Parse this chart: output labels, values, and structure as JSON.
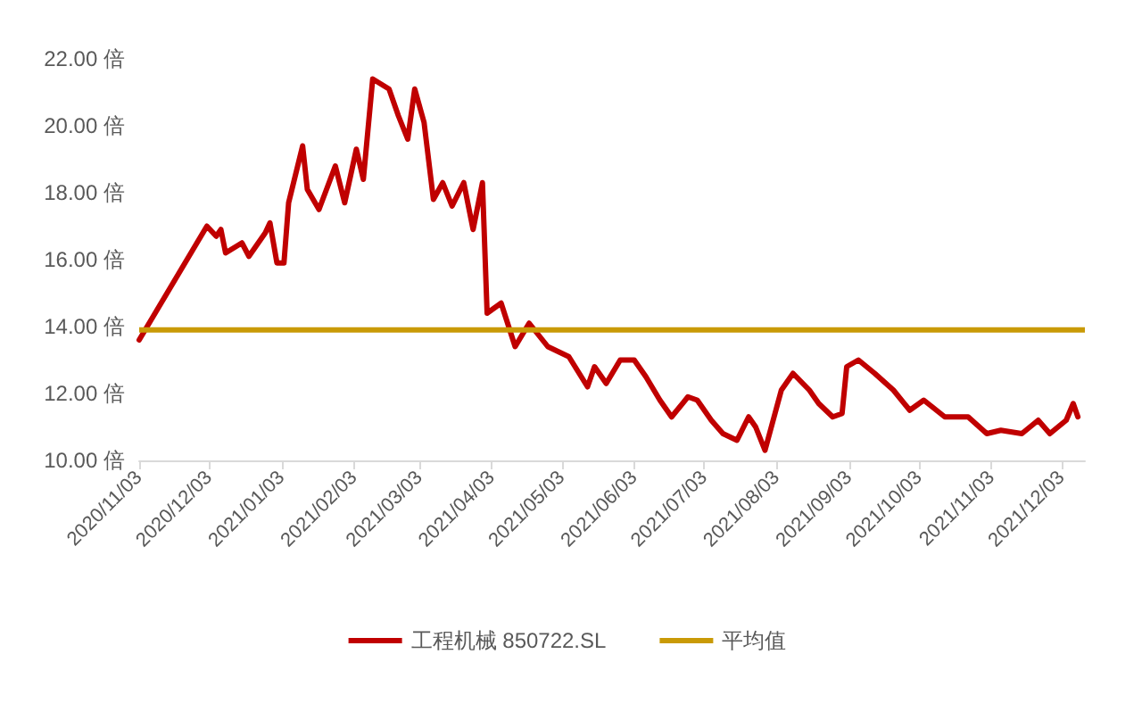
{
  "chart_data": {
    "type": "line",
    "x": [
      "2020-11-03",
      "2020-12-02",
      "2020-12-06",
      "2020-12-08",
      "2020-12-10",
      "2020-12-17",
      "2020-12-20",
      "2020-12-27",
      "2020-12-29",
      "2021-01-01",
      "2021-01-04",
      "2021-01-06",
      "2021-01-12",
      "2021-01-14",
      "2021-01-19",
      "2021-01-26",
      "2021-01-30",
      "2021-02-04",
      "2021-02-07",
      "2021-02-11",
      "2021-02-18",
      "2021-02-22",
      "2021-02-26",
      "2021-03-01",
      "2021-03-05",
      "2021-03-09",
      "2021-03-13",
      "2021-03-17",
      "2021-03-22",
      "2021-03-26",
      "2021-03-30",
      "2021-04-01",
      "2021-04-07",
      "2021-04-13",
      "2021-04-19",
      "2021-04-27",
      "2021-05-06",
      "2021-05-14",
      "2021-05-17",
      "2021-05-22",
      "2021-05-28",
      "2021-06-03",
      "2021-06-08",
      "2021-06-14",
      "2021-06-19",
      "2021-06-26",
      "2021-06-30",
      "2021-07-06",
      "2021-07-11",
      "2021-07-17",
      "2021-07-22",
      "2021-07-25",
      "2021-07-29",
      "2021-08-05",
      "2021-08-10",
      "2021-08-17",
      "2021-08-21",
      "2021-08-27",
      "2021-08-31",
      "2021-09-02",
      "2021-09-07",
      "2021-09-14",
      "2021-09-22",
      "2021-09-29",
      "2021-10-05",
      "2021-10-14",
      "2021-10-24",
      "2021-11-01",
      "2021-11-07",
      "2021-11-16",
      "2021-11-23",
      "2021-11-28",
      "2021-12-05",
      "2021-12-08",
      "2021-12-10"
    ],
    "series": [
      {
        "name": "工程机械 850722.SL",
        "color": "#c00000",
        "values": [
          13.6,
          17.0,
          16.7,
          16.9,
          16.2,
          16.5,
          16.1,
          16.8,
          17.1,
          15.9,
          15.9,
          17.7,
          19.4,
          18.1,
          17.5,
          18.8,
          17.7,
          19.3,
          18.4,
          21.4,
          21.1,
          20.3,
          19.6,
          21.1,
          20.1,
          17.8,
          18.3,
          17.6,
          18.3,
          16.9,
          18.3,
          14.4,
          14.7,
          13.4,
          14.1,
          13.4,
          13.1,
          12.2,
          12.8,
          12.3,
          13.0,
          13.0,
          12.5,
          11.8,
          11.3,
          11.9,
          11.8,
          11.2,
          10.8,
          10.6,
          11.3,
          11.0,
          10.3,
          12.1,
          12.6,
          12.1,
          11.7,
          11.3,
          11.4,
          12.8,
          13.0,
          12.6,
          12.1,
          11.5,
          11.8,
          11.3,
          11.3,
          10.8,
          10.9,
          10.8,
          11.2,
          10.8,
          11.2,
          11.7,
          11.3
        ]
      }
    ],
    "ref_lines": [
      {
        "axis": "y",
        "value": 13.9,
        "label": "平均值",
        "color": "#c99a06"
      }
    ],
    "xlim": [
      "2020-11-03",
      "2021-12-13"
    ],
    "xticks": [
      {
        "value": "2020-11-03",
        "label": "2020/11/03"
      },
      {
        "value": "2020-12-03",
        "label": "2020/12/03"
      },
      {
        "value": "2021-01-03",
        "label": "2021/01/03"
      },
      {
        "value": "2021-02-03",
        "label": "2021/02/03"
      },
      {
        "value": "2021-03-03",
        "label": "2021/03/03"
      },
      {
        "value": "2021-04-03",
        "label": "2021/04/03"
      },
      {
        "value": "2021-05-03",
        "label": "2021/05/03"
      },
      {
        "value": "2021-06-03",
        "label": "2021/06/03"
      },
      {
        "value": "2021-07-03",
        "label": "2021/07/03"
      },
      {
        "value": "2021-08-03",
        "label": "2021/08/03"
      },
      {
        "value": "2021-09-03",
        "label": "2021/09/03"
      },
      {
        "value": "2021-10-03",
        "label": "2021/10/03"
      },
      {
        "value": "2021-11-03",
        "label": "2021/11/03"
      },
      {
        "value": "2021-12-03",
        "label": "2021/12/03"
      }
    ],
    "ylim": [
      10,
      22
    ],
    "yticks": [
      {
        "value": 10,
        "label": "10.00 倍"
      },
      {
        "value": 12,
        "label": "12.00 倍"
      },
      {
        "value": 14,
        "label": "14.00 倍"
      },
      {
        "value": 16,
        "label": "16.00 倍"
      },
      {
        "value": 18,
        "label": "18.00 倍"
      },
      {
        "value": 20,
        "label": "20.00 倍"
      },
      {
        "value": 22,
        "label": "22.00 倍"
      }
    ],
    "legend": "bottom",
    "grid": false,
    "marker": "none",
    "line_style": "solid"
  }
}
